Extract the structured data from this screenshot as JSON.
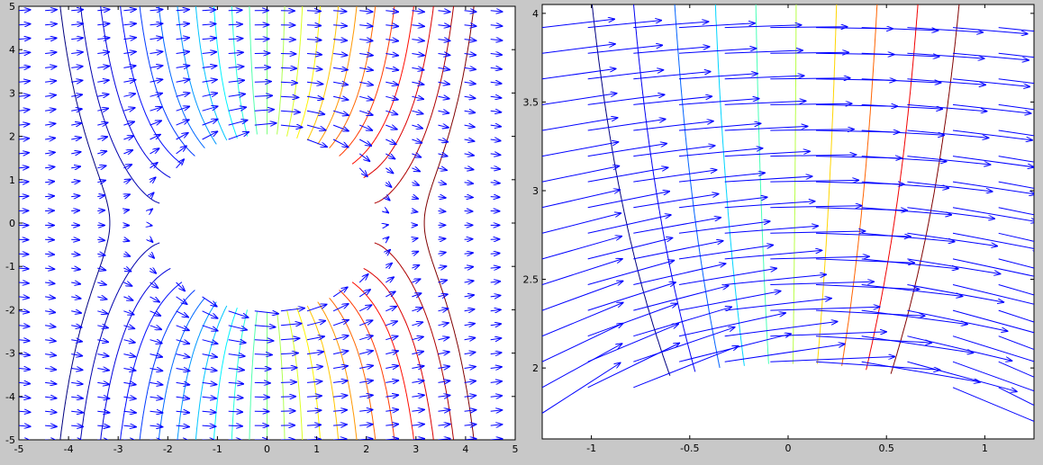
{
  "chart_data": [
    {
      "type": "contour_quiver",
      "title": "",
      "xlabel": "",
      "ylabel": "",
      "xlim": [
        -5,
        5
      ],
      "ylim": [
        -5,
        5
      ],
      "xticks": [
        -5,
        -4,
        -3,
        -2,
        -1,
        0,
        1,
        2,
        3,
        4,
        5
      ],
      "yticks": [
        -5,
        -4,
        -3,
        -2,
        -1,
        0,
        1,
        2,
        3,
        4,
        5
      ],
      "obstacle": {
        "shape": "ellipse",
        "center": [
          0,
          0
        ],
        "semi_axes": [
          2.2,
          2.0
        ]
      },
      "contour_levels": [
        -4.4,
        -4.0,
        -3.6,
        -3.2,
        -2.8,
        -2.4,
        -2.0,
        -1.6,
        -1.2,
        -0.8,
        -0.4,
        0,
        0.4,
        0.8,
        1.2,
        1.6,
        2.0,
        2.4,
        2.8,
        3.2,
        3.6,
        4.0,
        4.4
      ],
      "colormap": "jet",
      "vector_color": "#0000ff",
      "flow": "uniform flow in +x direction around an elliptical obstacle",
      "grid": false,
      "legend": "none"
    },
    {
      "type": "contour_quiver",
      "title": "",
      "xlabel": "",
      "ylabel": "",
      "xlim": [
        -1.25,
        1.25
      ],
      "ylim": [
        1.6,
        4.05
      ],
      "xticks": [
        -1,
        -0.5,
        0,
        0.5,
        1
      ],
      "yticks": [
        2,
        2.5,
        3,
        3.5,
        4
      ],
      "obstacle": {
        "shape": "ellipse",
        "center": [
          0,
          0
        ],
        "semi_axes": [
          2.2,
          2.0
        ]
      },
      "contour_levels": [
        -1.2,
        -0.95,
        -0.7,
        -0.45,
        -0.2,
        0.05,
        0.3,
        0.55,
        0.8,
        1.05
      ],
      "colormap": "jet",
      "vector_color": "#0000ff",
      "flow": "zoomed view above the obstacle",
      "grid": false,
      "legend": "none"
    }
  ]
}
